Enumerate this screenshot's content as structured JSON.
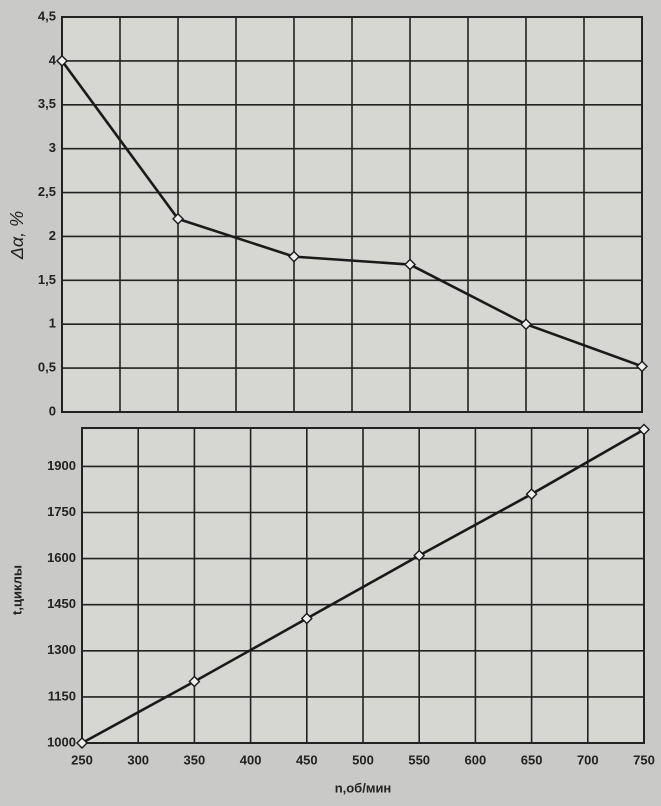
{
  "chart_data": [
    {
      "type": "line",
      "ylabel": "Δα, %",
      "x": [
        250,
        350,
        450,
        550,
        650,
        750
      ],
      "series": [
        {
          "color": "#1a1a1a",
          "values": [
            4,
            2.2,
            1.77,
            1.68,
            1.0,
            0.52
          ]
        }
      ],
      "xlim": [
        250,
        750
      ],
      "xticks": [
        250,
        300,
        350,
        400,
        450,
        500,
        550,
        600,
        650,
        700,
        750
      ],
      "ylim": [
        0,
        4.5
      ],
      "yticks": [
        0,
        {
          "value": 0.5,
          "label": "0,5"
        },
        1,
        {
          "value": 1.5,
          "label": "1,5"
        },
        2,
        {
          "value": 2.5,
          "label": "2,5"
        },
        3,
        {
          "value": 3.5,
          "label": "3,5"
        },
        4,
        {
          "value": 4.5,
          "label": "4,5"
        }
      ],
      "grid": true
    },
    {
      "type": "line",
      "ylabel": "t,циклы",
      "xlabel": "n,об/мин",
      "x": [
        250,
        350,
        450,
        550,
        650,
        750
      ],
      "series": [
        {
          "color": "#1a1a1a",
          "values": [
            1000,
            1200,
            1405,
            1610,
            1810,
            2020
          ]
        }
      ],
      "xlim": [
        250,
        750
      ],
      "xticks": [
        250,
        300,
        350,
        400,
        450,
        500,
        550,
        600,
        650,
        700,
        750
      ],
      "ylim": [
        1000,
        2025
      ],
      "yticks": [
        1000,
        1150,
        1300,
        1450,
        1600,
        1750,
        1900
      ],
      "grid": true
    }
  ]
}
